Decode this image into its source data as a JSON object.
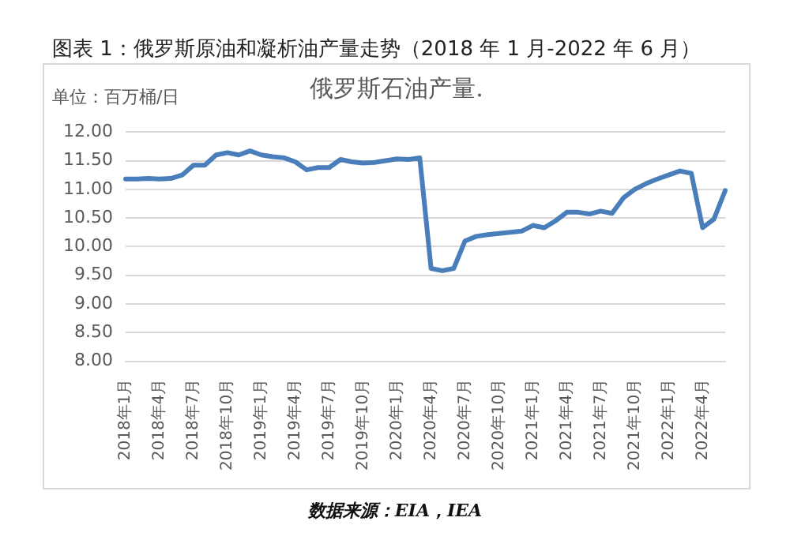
{
  "chart_data": {
    "type": "line",
    "title": "图表 1：俄罗斯原油和凝析油产量走势（2018 年 1 月-2022 年 6 月）",
    "subtitle": "俄罗斯石油产量.",
    "ylabel": "单位：百万桶/日",
    "categories": [
      "2018年1月",
      null,
      null,
      "2018年4月",
      null,
      null,
      "2018年7月",
      null,
      null,
      "2018年10月",
      null,
      null,
      "2019年1月",
      null,
      null,
      "2019年4月",
      null,
      null,
      "2019年7月",
      null,
      null,
      "2019年10月",
      null,
      null,
      "2020年1月",
      null,
      null,
      "2020年4月",
      null,
      null,
      "2020年7月",
      null,
      null,
      "2020年10月",
      null,
      null,
      "2021年1月",
      null,
      null,
      "2021年4月",
      null,
      null,
      "2021年7月",
      null,
      null,
      "2021年10月",
      null,
      null,
      "2022年1月",
      null,
      null,
      "2022年4月",
      null,
      null
    ],
    "series": [
      {
        "color": "#4a7ebb",
        "values": [
          11.18,
          11.18,
          11.19,
          11.18,
          11.19,
          11.25,
          11.42,
          11.42,
          11.6,
          11.64,
          11.6,
          11.67,
          11.6,
          11.57,
          11.55,
          11.48,
          11.34,
          11.38,
          11.38,
          11.52,
          11.48,
          11.46,
          11.47,
          11.5,
          11.53,
          11.52,
          11.55,
          9.62,
          9.58,
          9.62,
          10.1,
          10.18,
          10.21,
          10.23,
          10.25,
          10.27,
          10.37,
          10.33,
          10.45,
          10.6,
          10.6,
          10.57,
          10.62,
          10.58,
          10.85,
          11.0,
          11.1,
          11.18,
          11.25,
          11.32,
          11.28,
          10.33,
          10.48,
          10.98
        ]
      }
    ],
    "ylim": [
      8,
      12
    ],
    "yticks": [
      {
        "value": 8,
        "label": "8.00"
      },
      {
        "value": 8.5,
        "label": "8.50"
      },
      {
        "value": 9,
        "label": "9.00"
      },
      {
        "value": 9.5,
        "label": "9.50"
      },
      {
        "value": 10,
        "label": "10.00"
      },
      {
        "value": 10.5,
        "label": "10.50"
      },
      {
        "value": 11,
        "label": "11.00"
      },
      {
        "value": 11.5,
        "label": "11.50"
      },
      {
        "value": 12,
        "label": "12.00"
      }
    ],
    "grid": "y",
    "legend": false,
    "marker": "none",
    "line_style": "solid",
    "annotations": [
      "数据来源：EIA，IEA"
    ]
  }
}
